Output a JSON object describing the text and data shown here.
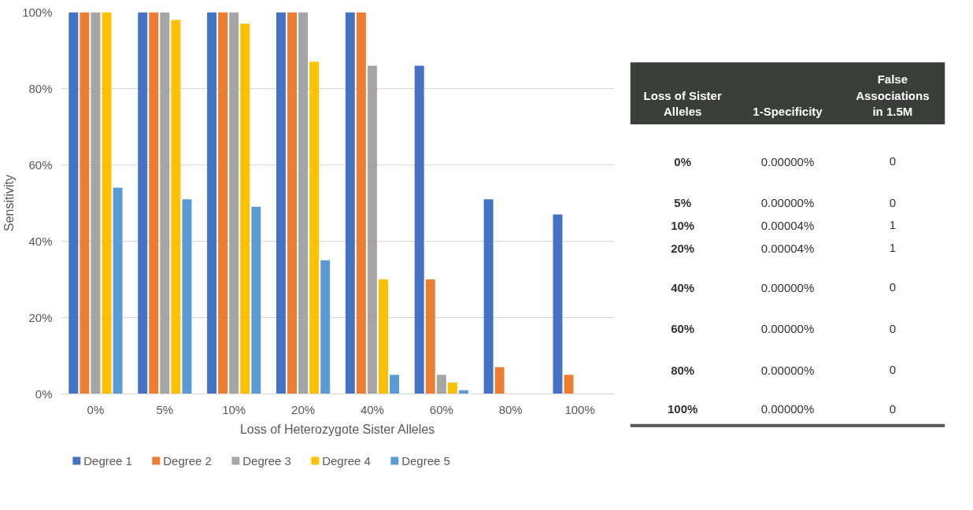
{
  "chart_data": [
    {
      "type": "bar",
      "xlabel": "Loss of Heterozygote Sister Alleles",
      "ylabel": "Sensitivity",
      "categories": [
        "0%",
        "5%",
        "10%",
        "20%",
        "40%",
        "60%",
        "80%",
        "100%"
      ],
      "series": [
        {
          "name": "Degree 1",
          "color": "#4472c4",
          "values": [
            100,
            100,
            100,
            100,
            100,
            86,
            51,
            47
          ]
        },
        {
          "name": "Degree 2",
          "color": "#ed7d31",
          "values": [
            100,
            100,
            100,
            100,
            100,
            30,
            7,
            5
          ]
        },
        {
          "name": "Degree 3",
          "color": "#a5a5a5",
          "values": [
            100,
            100,
            100,
            100,
            86,
            5,
            0,
            0
          ]
        },
        {
          "name": "Degree 4",
          "color": "#ffc000",
          "values": [
            100,
            98,
            97,
            87,
            30,
            3,
            0,
            0
          ]
        },
        {
          "name": "Degree 5",
          "color": "#5b9bd5",
          "values": [
            54,
            51,
            49,
            35,
            5,
            1,
            0,
            0
          ]
        }
      ],
      "ylim": [
        0,
        100
      ],
      "yticks": [
        {
          "value": 0,
          "label": "0%"
        },
        {
          "value": 20,
          "label": "20%"
        },
        {
          "value": 40,
          "label": "40%"
        },
        {
          "value": 60,
          "label": "60%"
        },
        {
          "value": 80,
          "label": "80%"
        },
        {
          "value": 100,
          "label": "100%"
        }
      ],
      "grid": "y",
      "legend": "bottom"
    },
    {
      "type": "other",
      "annotations": [
        "Loss of Sister Alleles",
        "1-Specificity",
        "False Associations in 1.5M",
        "0%",
        "0.00000%",
        "0",
        "5%",
        "0.00000%",
        "0",
        "10%",
        "0.00004%",
        "1",
        "20%",
        "0.00004%",
        "1",
        "40%",
        "0.00000%",
        "0",
        "60%",
        "0.00000%",
        "0",
        "80%",
        "0.00000%",
        "0",
        "100%",
        "0.00000%",
        "0"
      ]
    }
  ]
}
